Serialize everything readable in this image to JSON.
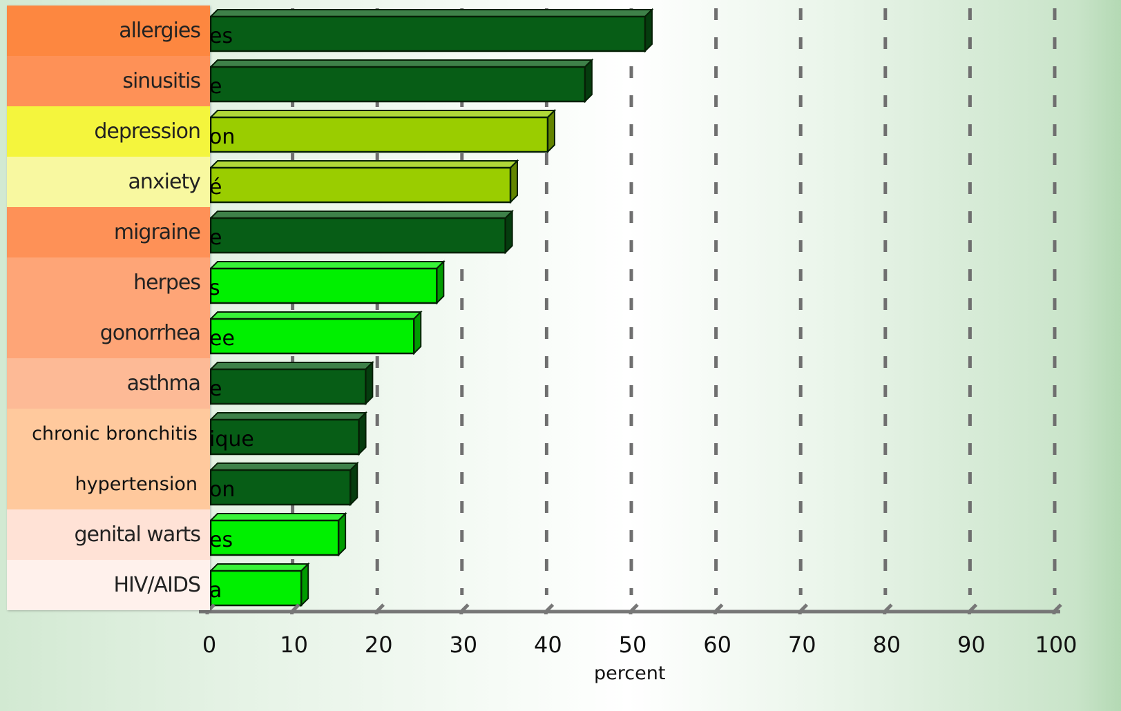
{
  "chart_data": {
    "type": "bar",
    "orientation": "horizontal",
    "categories": [
      "allergies",
      "sinusitis",
      "depression",
      "anxiety",
      "migraine",
      "herpes",
      "gonorrhea",
      "asthma",
      "chronic bronchitis",
      "hypertension",
      "genital warts",
      "HIV/AIDS"
    ],
    "hidden_labels": [
      "es",
      "e",
      "on",
      "é",
      "e",
      "s",
      "ee",
      "e",
      "ique",
      "on",
      "es",
      "a"
    ],
    "values": [
      51.3,
      44.2,
      39.8,
      35.4,
      34.8,
      26.7,
      24.0,
      18.3,
      17.5,
      16.5,
      15.1,
      10.7
    ],
    "bar_colors": [
      "#075d16",
      "#075d16",
      "#9acd00",
      "#9acd00",
      "#075d16",
      "#00f000",
      "#00f000",
      "#075d16",
      "#075d16",
      "#075d16",
      "#00f000",
      "#00f000"
    ],
    "label_colors": [
      "#fd8740",
      "#fe9157",
      "#f4f53d",
      "#f8f8a0",
      "#fe9157",
      "#fea577",
      "#fea577",
      "#fdba96",
      "#ffc99d",
      "#ffc99d",
      "#ffe2d6",
      "#fff1ec"
    ],
    "xlabel": "percent",
    "x_ticks": [
      0,
      10,
      20,
      30,
      40,
      50,
      60,
      70,
      80,
      90,
      100
    ],
    "xlim": [
      0,
      100
    ],
    "grid": true
  }
}
